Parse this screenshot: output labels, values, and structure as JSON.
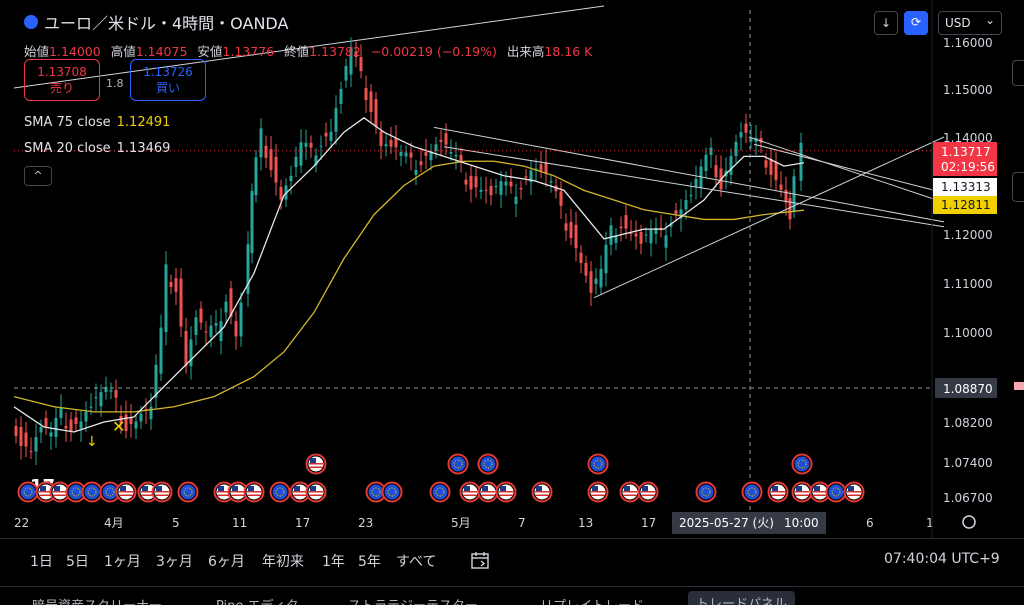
{
  "header": {
    "symbol": "ユーロ／米ドル・4時間・OANDA",
    "ohlc": [
      {
        "label": "始値",
        "value": "1.14000"
      },
      {
        "label": "高値",
        "value": "1.14075"
      },
      {
        "label": "安値",
        "value": "1.13776"
      },
      {
        "label": "終値",
        "value": "1.13782"
      }
    ],
    "change": "−0.00219 (−0.19%)",
    "volume_label": "出来高",
    "volume": "18.16 K"
  },
  "trade": {
    "sell_price": "1.13708",
    "sell_label": "売り",
    "spread": "1.8",
    "buy_price": "1.13726",
    "buy_label": "買い"
  },
  "indicators": {
    "sma75_label": "SMA 75 close",
    "sma75_value": "1.12491",
    "sma20_label": "SMA 20 close",
    "sma20_value": "1.13469",
    "collapse_icon": "^"
  },
  "toolbar": {
    "download_icon": "↓",
    "sync_icon": "⟳",
    "currency": "USD",
    "currency_caret": "⌄"
  },
  "bottombar": {
    "ranges": [
      "1日",
      "5日",
      "1ヶ月",
      "3ヶ月",
      "6ヶ月",
      "年初来",
      "1年",
      "5年",
      "すべて"
    ],
    "calendar_icon": "calendar-range-icon",
    "clock": "07:40:04 UTC+9"
  },
  "tabs": [
    "暗号資産スクリーナー",
    "Pine エディタ",
    "ストラテジーテスター",
    "リプレイトレード",
    "トレードパネル"
  ],
  "chart_data": {
    "type": "candlestick",
    "title": "ユーロ／米ドル・4時間・OANDA",
    "ylim": [
      1.063,
      1.163
    ],
    "y_ticks": [
      "1.16000",
      "1.15000",
      "1.14000",
      "1.12000",
      "1.11000",
      "1.10000",
      "1.08200",
      "1.07400",
      "1.06700"
    ],
    "x_labels": [
      "22",
      "4月",
      "5",
      "11",
      "17",
      "23",
      "5月",
      "7",
      "13",
      "17",
      "10:00",
      "6",
      "1"
    ],
    "crosshair": {
      "x_label": "2025-05-27 (火)",
      "time_label": "10:00",
      "y_label": "1.08870",
      "y_value": 1.0887
    },
    "price_labels": [
      {
        "value": 1.13717,
        "text": "1.13717",
        "sub": "02:19:56",
        "color": "#f23645"
      },
      {
        "value": 1.13313,
        "text": "1.13313",
        "color": "#ffffff"
      },
      {
        "value": 1.12811,
        "text": "1.12811",
        "color": "#f0d000"
      }
    ],
    "price_series": [
      [
        0,
        1.083
      ],
      [
        10,
        1.079
      ],
      [
        20,
        1.077
      ],
      [
        30,
        1.081
      ],
      [
        40,
        1.079
      ],
      [
        50,
        1.083
      ],
      [
        60,
        1.082
      ],
      [
        70,
        1.083
      ],
      [
        80,
        1.085
      ],
      [
        95,
        1.088
      ],
      [
        105,
        1.085
      ],
      [
        115,
        1.082
      ],
      [
        125,
        1.083
      ],
      [
        140,
        1.085
      ],
      [
        150,
        1.1
      ],
      [
        155,
        1.112
      ],
      [
        165,
        1.11
      ],
      [
        175,
        1.094
      ],
      [
        185,
        1.103
      ],
      [
        195,
        1.099
      ],
      [
        205,
        1.1
      ],
      [
        215,
        1.108
      ],
      [
        225,
        1.1
      ],
      [
        232,
        1.106
      ],
      [
        240,
        1.128
      ],
      [
        250,
        1.14
      ],
      [
        260,
        1.135
      ],
      [
        270,
        1.128
      ],
      [
        280,
        1.132
      ],
      [
        290,
        1.138
      ],
      [
        300,
        1.136
      ],
      [
        310,
        1.14
      ],
      [
        320,
        1.142
      ],
      [
        330,
        1.15
      ],
      [
        340,
        1.158
      ],
      [
        350,
        1.152
      ],
      [
        360,
        1.147
      ],
      [
        370,
        1.139
      ],
      [
        380,
        1.138
      ],
      [
        390,
        1.136
      ],
      [
        400,
        1.134
      ],
      [
        410,
        1.136
      ],
      [
        420,
        1.138
      ],
      [
        430,
        1.139
      ],
      [
        440,
        1.136
      ],
      [
        450,
        1.133
      ],
      [
        460,
        1.131
      ],
      [
        470,
        1.13
      ],
      [
        480,
        1.128
      ],
      [
        490,
        1.13
      ],
      [
        500,
        1.128
      ],
      [
        510,
        1.131
      ],
      [
        520,
        1.134
      ],
      [
        530,
        1.133
      ],
      [
        540,
        1.13
      ],
      [
        550,
        1.124
      ],
      [
        560,
        1.121
      ],
      [
        570,
        1.115
      ],
      [
        580,
        1.108
      ],
      [
        590,
        1.112
      ],
      [
        600,
        1.12
      ],
      [
        610,
        1.123
      ],
      [
        620,
        1.121
      ],
      [
        630,
        1.118
      ],
      [
        640,
        1.12
      ],
      [
        650,
        1.119
      ],
      [
        660,
        1.124
      ],
      [
        670,
        1.126
      ],
      [
        680,
        1.128
      ],
      [
        690,
        1.133
      ],
      [
        700,
        1.136
      ],
      [
        710,
        1.131
      ],
      [
        720,
        1.137
      ],
      [
        730,
        1.141
      ],
      [
        740,
        1.139
      ],
      [
        750,
        1.137
      ],
      [
        760,
        1.134
      ],
      [
        770,
        1.13
      ],
      [
        778,
        1.123
      ],
      [
        785,
        1.131
      ],
      [
        790,
        1.137
      ]
    ],
    "sma20": [
      [
        0,
        1.085
      ],
      [
        30,
        1.081
      ],
      [
        60,
        1.08
      ],
      [
        90,
        1.082
      ],
      [
        120,
        1.083
      ],
      [
        150,
        1.089
      ],
      [
        180,
        1.095
      ],
      [
        210,
        1.101
      ],
      [
        240,
        1.112
      ],
      [
        270,
        1.128
      ],
      [
        300,
        1.134
      ],
      [
        330,
        1.141
      ],
      [
        350,
        1.144
      ],
      [
        370,
        1.141
      ],
      [
        400,
        1.138
      ],
      [
        430,
        1.136
      ],
      [
        460,
        1.134
      ],
      [
        490,
        1.132
      ],
      [
        520,
        1.131
      ],
      [
        550,
        1.129
      ],
      [
        570,
        1.124
      ],
      [
        590,
        1.119
      ],
      [
        610,
        1.12
      ],
      [
        630,
        1.121
      ],
      [
        650,
        1.121
      ],
      [
        670,
        1.124
      ],
      [
        690,
        1.127
      ],
      [
        710,
        1.132
      ],
      [
        730,
        1.136
      ],
      [
        750,
        1.136
      ],
      [
        770,
        1.134
      ],
      [
        790,
        1.13469
      ]
    ],
    "sma75": [
      [
        0,
        1.087
      ],
      [
        40,
        1.085
      ],
      [
        80,
        1.084
      ],
      [
        120,
        1.084
      ],
      [
        160,
        1.085
      ],
      [
        200,
        1.087
      ],
      [
        240,
        1.091
      ],
      [
        270,
        1.096
      ],
      [
        300,
        1.104
      ],
      [
        330,
        1.115
      ],
      [
        360,
        1.124
      ],
      [
        390,
        1.13
      ],
      [
        420,
        1.134
      ],
      [
        450,
        1.135
      ],
      [
        480,
        1.135
      ],
      [
        510,
        1.134
      ],
      [
        540,
        1.132
      ],
      [
        570,
        1.129
      ],
      [
        600,
        1.127
      ],
      [
        630,
        1.125
      ],
      [
        660,
        1.124
      ],
      [
        690,
        1.123
      ],
      [
        720,
        1.123
      ],
      [
        750,
        1.124
      ],
      [
        790,
        1.12491
      ]
    ],
    "trendlines": [
      {
        "from": [
          420,
          1.142
        ],
        "to": [
          930,
          1.1225
        ]
      },
      {
        "from": [
          430,
          1.138
        ],
        "to": [
          930,
          1.1215
        ]
      },
      {
        "from": [
          580,
          1.107
        ],
        "to": [
          930,
          1.14
        ]
      },
      {
        "from": [
          735,
          1.14
        ],
        "to": [
          930,
          1.1265
        ]
      },
      {
        "from": [
          740,
          1.1385
        ],
        "to": [
          930,
          1.1285
        ]
      }
    ],
    "event_markers": [
      {
        "x": 26,
        "row": 0,
        "flag": "eu"
      },
      {
        "x": 44,
        "row": 0,
        "flag": "us"
      },
      {
        "x": 58,
        "row": 0,
        "flag": "us"
      },
      {
        "x": 74,
        "row": 0,
        "flag": "eu"
      },
      {
        "x": 90,
        "row": 0,
        "flag": "eu"
      },
      {
        "x": 108,
        "row": 0,
        "flag": "eu"
      },
      {
        "x": 124,
        "row": 0,
        "flag": "us"
      },
      {
        "x": 146,
        "row": 0,
        "flag": "us"
      },
      {
        "x": 160,
        "row": 0,
        "flag": "us"
      },
      {
        "x": 186,
        "row": 0,
        "flag": "eu"
      },
      {
        "x": 222,
        "row": 0,
        "flag": "us"
      },
      {
        "x": 236,
        "row": 0,
        "flag": "us"
      },
      {
        "x": 252,
        "row": 0,
        "flag": "us"
      },
      {
        "x": 278,
        "row": 0,
        "flag": "eu"
      },
      {
        "x": 298,
        "row": 0,
        "flag": "us"
      },
      {
        "x": 314,
        "row": 1,
        "flag": "us"
      },
      {
        "x": 314,
        "row": 0,
        "flag": "us"
      },
      {
        "x": 374,
        "row": 0,
        "flag": "eu"
      },
      {
        "x": 390,
        "row": 0,
        "flag": "eu"
      },
      {
        "x": 438,
        "row": 0,
        "flag": "eu"
      },
      {
        "x": 456,
        "row": 1,
        "flag": "eu"
      },
      {
        "x": 468,
        "row": 0,
        "flag": "us"
      },
      {
        "x": 486,
        "row": 1,
        "flag": "eu"
      },
      {
        "x": 486,
        "row": 0,
        "flag": "us"
      },
      {
        "x": 504,
        "row": 0,
        "flag": "us"
      },
      {
        "x": 540,
        "row": 0,
        "flag": "us"
      },
      {
        "x": 596,
        "row": 1,
        "flag": "eu"
      },
      {
        "x": 596,
        "row": 0,
        "flag": "us"
      },
      {
        "x": 628,
        "row": 0,
        "flag": "us"
      },
      {
        "x": 646,
        "row": 0,
        "flag": "us"
      },
      {
        "x": 704,
        "row": 0,
        "flag": "eu"
      },
      {
        "x": 750,
        "row": 0,
        "flag": "eu"
      },
      {
        "x": 776,
        "row": 0,
        "flag": "us"
      },
      {
        "x": 800,
        "row": 1,
        "flag": "eu"
      },
      {
        "x": 800,
        "row": 0,
        "flag": "us"
      },
      {
        "x": 818,
        "row": 0,
        "flag": "us"
      },
      {
        "x": 834,
        "row": 0,
        "flag": "eu"
      },
      {
        "x": 852,
        "row": 0,
        "flag": "us"
      }
    ]
  }
}
